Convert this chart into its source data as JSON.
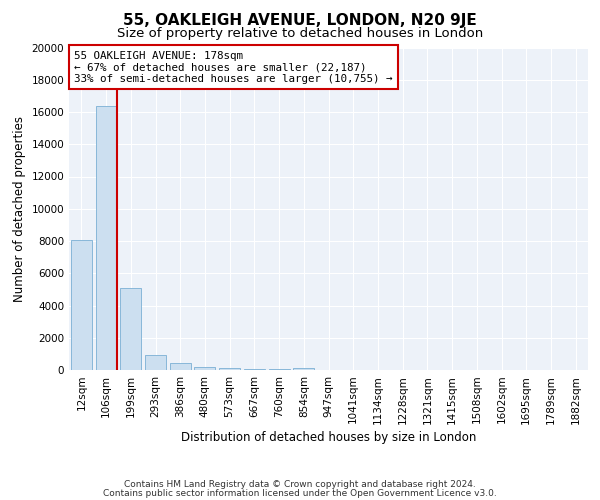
{
  "title": "55, OAKLEIGH AVENUE, LONDON, N20 9JE",
  "subtitle": "Size of property relative to detached houses in London",
  "xlabel": "Distribution of detached houses by size in London",
  "ylabel": "Number of detached properties",
  "bar_color": "#ccdff0",
  "bar_edge_color": "#7aafd4",
  "property_line_color": "#cc0000",
  "property_bin_index": 1,
  "annotation_text": "55 OAKLEIGH AVENUE: 178sqm\n← 67% of detached houses are smaller (22,187)\n33% of semi-detached houses are larger (10,755) →",
  "annotation_box_facecolor": "#ffffff",
  "annotation_box_edge": "#cc0000",
  "categories": [
    "12sqm",
    "106sqm",
    "199sqm",
    "293sqm",
    "386sqm",
    "480sqm",
    "573sqm",
    "667sqm",
    "760sqm",
    "854sqm",
    "947sqm",
    "1041sqm",
    "1134sqm",
    "1228sqm",
    "1321sqm",
    "1415sqm",
    "1508sqm",
    "1602sqm",
    "1695sqm",
    "1789sqm",
    "1882sqm"
  ],
  "values": [
    8050,
    16400,
    5100,
    900,
    420,
    160,
    120,
    80,
    65,
    130,
    0,
    0,
    0,
    0,
    0,
    0,
    0,
    0,
    0,
    0,
    0
  ],
  "ylim": [
    0,
    20000
  ],
  "yticks": [
    0,
    2000,
    4000,
    6000,
    8000,
    10000,
    12000,
    14000,
    16000,
    18000,
    20000
  ],
  "footer1": "Contains HM Land Registry data © Crown copyright and database right 2024.",
  "footer2": "Contains public sector information licensed under the Open Government Licence v3.0.",
  "background_color": "#ffffff",
  "plot_background": "#edf2f9",
  "grid_color": "#ffffff",
  "title_fontsize": 11,
  "subtitle_fontsize": 9.5,
  "tick_fontsize": 7.5,
  "ylabel_fontsize": 8.5,
  "xlabel_fontsize": 8.5,
  "footer_fontsize": 6.5,
  "annotation_fontsize": 7.8
}
